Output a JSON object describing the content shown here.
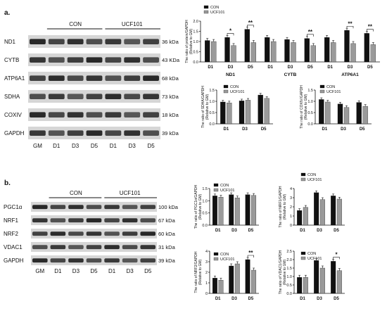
{
  "panel_labels": [
    "a.",
    "b."
  ],
  "blot_a": {
    "groups": [
      "CON",
      "UCF101"
    ],
    "rows": [
      {
        "name": "ND1",
        "size": "36 kDa"
      },
      {
        "name": "CYTB",
        "size": "43 KDa"
      },
      {
        "name": "ATP6A1",
        "size": "68 kDa"
      },
      {
        "name": "SDHA",
        "size": "73 kDa"
      },
      {
        "name": "COXIV",
        "size": "18 kDa"
      },
      {
        "name": "GAPDH",
        "size": "39 kDa"
      }
    ],
    "lanes": [
      "GM",
      "D1",
      "D3",
      "D5",
      "D1",
      "D3",
      "D5"
    ]
  },
  "blot_b": {
    "groups": [
      "CON",
      "UCF101"
    ],
    "rows": [
      {
        "name": "PGC1α",
        "size": "100 kDa"
      },
      {
        "name": "NRF1",
        "size": "67 kDa"
      },
      {
        "name": "NRF2",
        "size": "60 kDa"
      },
      {
        "name": "VDAC1",
        "size": "31 kDa"
      },
      {
        "name": "GAPDH",
        "size": "39 kDa"
      }
    ],
    "lanes": [
      "GM",
      "D1",
      "D3",
      "D5",
      "D1",
      "D3",
      "D5"
    ]
  },
  "legend": [
    "CON",
    "UCF101"
  ],
  "colors": {
    "con": "#111111",
    "ucf": "#9a9a9a"
  },
  "chart_data": [
    {
      "type": "bar",
      "ylabel": "The ratio of protein/GAPDH\n(Relative to GM)",
      "ylim": [
        0,
        2.0
      ],
      "yticks": [
        "0.0",
        "0.5",
        "1.0",
        "1.5",
        "2.0"
      ],
      "groups": [
        "ND1",
        "CYTB",
        "ATP6A1"
      ],
      "categories": [
        "D1",
        "D3",
        "D5",
        "D1",
        "D3",
        "D5",
        "D1",
        "D3",
        "D5"
      ],
      "series": [
        {
          "name": "CON",
          "values": [
            1.05,
            1.2,
            1.6,
            1.2,
            1.1,
            1.15,
            1.2,
            1.55,
            1.4
          ]
        },
        {
          "name": "UCF101",
          "values": [
            1.0,
            0.8,
            0.95,
            1.0,
            0.95,
            0.8,
            0.95,
            0.9,
            0.85
          ]
        }
      ],
      "significance": [
        {
          "index": 1,
          "label": "*"
        },
        {
          "index": 2,
          "label": "**"
        },
        {
          "index": 5,
          "label": "**"
        },
        {
          "index": 7,
          "label": "**"
        },
        {
          "index": 8,
          "label": "**"
        }
      ]
    },
    {
      "type": "bar",
      "ylabel": "The ratio of SDHA/GAPDH\n(Relative to GM)",
      "ylim": [
        0,
        1.5
      ],
      "yticks": [
        "0.0",
        "0.5",
        "1.0",
        "1.5"
      ],
      "categories": [
        "D1",
        "D3",
        "D5"
      ],
      "series": [
        {
          "name": "CON",
          "values": [
            0.97,
            1.02,
            1.28
          ]
        },
        {
          "name": "UCF101",
          "values": [
            0.93,
            1.05,
            1.13
          ]
        }
      ],
      "significance": []
    },
    {
      "type": "bar",
      "ylabel": "The ratio of COXIV/GAPDH\n(Relative to GM)",
      "ylim": [
        0,
        1.5
      ],
      "yticks": [
        "0.0",
        "0.5",
        "1.0",
        "1.5"
      ],
      "categories": [
        "D1",
        "D3",
        "D5"
      ],
      "series": [
        {
          "name": "CON",
          "values": [
            1.08,
            0.88,
            0.95
          ]
        },
        {
          "name": "UCF101",
          "values": [
            0.97,
            0.73,
            0.78
          ]
        }
      ],
      "significance": []
    },
    {
      "type": "bar",
      "ylabel": "The ratio of PGC1α/GAPDH\n(Relative to GM)",
      "ylim": [
        0,
        1.5
      ],
      "yticks": [
        "0.0",
        "0.5",
        "1.0",
        "1.5"
      ],
      "categories": [
        "D1",
        "D3",
        "D5"
      ],
      "series": [
        {
          "name": "CON",
          "values": [
            1.2,
            1.25,
            1.25
          ]
        },
        {
          "name": "UCF101",
          "values": [
            1.15,
            1.12,
            1.22
          ]
        }
      ],
      "significance": []
    },
    {
      "type": "bar",
      "ylabel": "The ratio of NRF1/GAPDH\n(Relative to GM)",
      "ylim": [
        0,
        4
      ],
      "yticks": [
        "0",
        "1",
        "2",
        "3",
        "4"
      ],
      "categories": [
        "D1",
        "D3",
        "D5"
      ],
      "series": [
        {
          "name": "CON",
          "values": [
            1.6,
            3.55,
            3.2
          ]
        },
        {
          "name": "UCF101",
          "values": [
            1.95,
            2.8,
            2.85
          ]
        }
      ],
      "significance": []
    },
    {
      "type": "bar",
      "ylabel": "The ratio of NRF2/GAPDH\n(Relative to GM)",
      "ylim": [
        0,
        4
      ],
      "yticks": [
        "0",
        "1",
        "2",
        "3",
        "4"
      ],
      "categories": [
        "D1",
        "D3",
        "D5"
      ],
      "series": [
        {
          "name": "CON",
          "values": [
            1.45,
            2.6,
            3.2
          ]
        },
        {
          "name": "UCF101",
          "values": [
            1.25,
            2.8,
            2.2
          ]
        }
      ],
      "significance": [
        {
          "index": 2,
          "label": "**"
        }
      ]
    },
    {
      "type": "bar",
      "ylabel": "The ratio of VDAC1/GAPDH\n(Relative to GM)",
      "ylim": [
        0,
        2.5
      ],
      "yticks": [
        "0.0",
        "0.5",
        "1.0",
        "1.5",
        "2.0",
        "2.5"
      ],
      "categories": [
        "D1",
        "D3",
        "D5"
      ],
      "series": [
        {
          "name": "CON",
          "values": [
            0.95,
            1.95,
            1.9
          ]
        },
        {
          "name": "UCF101",
          "values": [
            0.95,
            1.5,
            1.35
          ]
        }
      ],
      "significance": [
        {
          "index": 2,
          "label": "*"
        }
      ]
    }
  ]
}
